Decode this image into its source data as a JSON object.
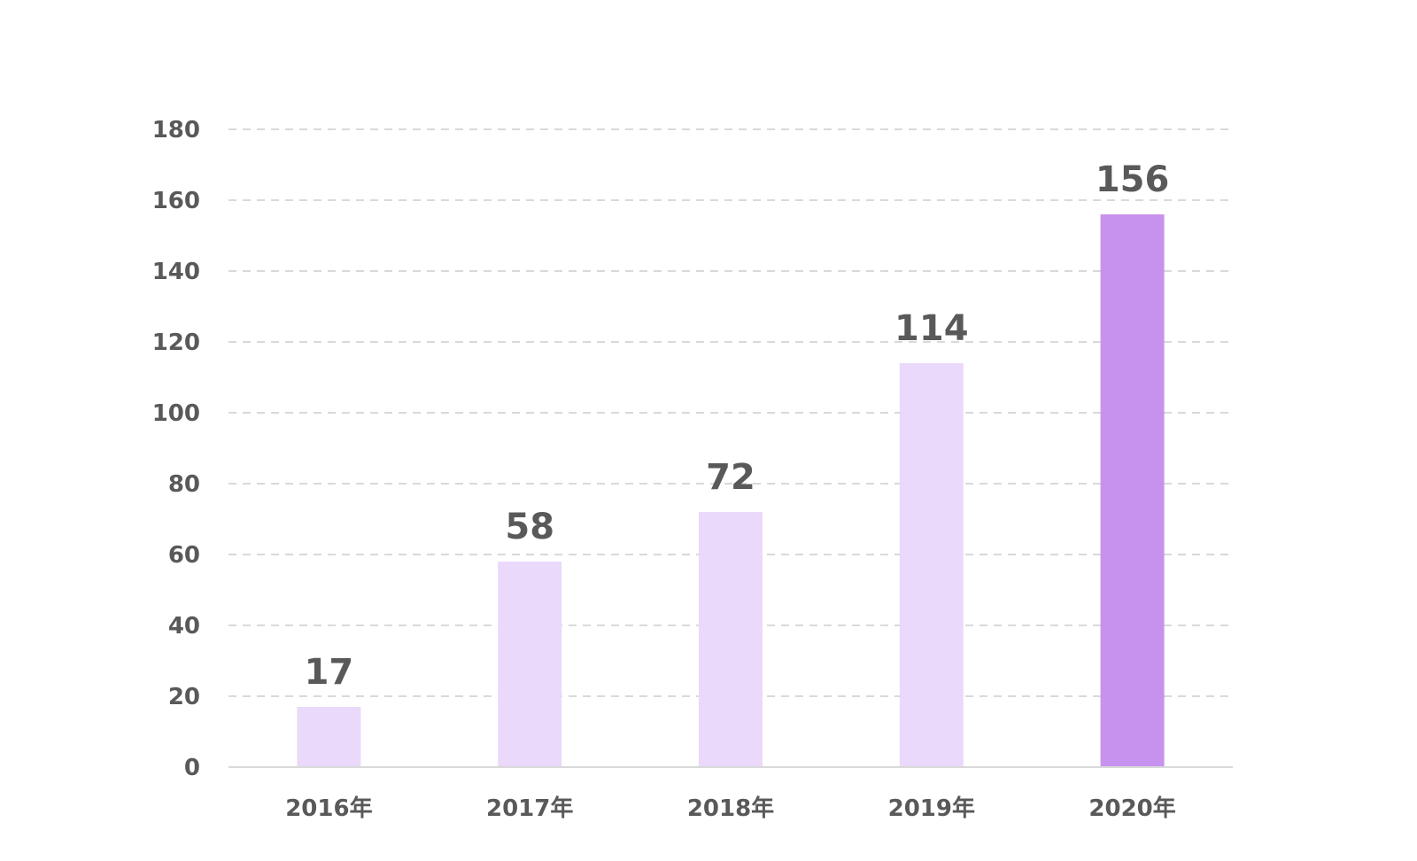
{
  "chart_data": {
    "type": "bar",
    "title": "",
    "xlabel": "",
    "ylabel": "",
    "categories": [
      "2016年",
      "2017年",
      "2018年",
      "2019年",
      "2020年"
    ],
    "values": [
      17,
      58,
      72,
      114,
      156
    ],
    "value_labels": [
      "17",
      "58",
      "72",
      "114",
      "156"
    ],
    "ylim": [
      0,
      180
    ],
    "yticks": [
      0,
      20,
      40,
      60,
      80,
      100,
      120,
      140,
      160,
      180
    ],
    "ytick_labels": [
      "0",
      "20",
      "40",
      "60",
      "80",
      "100",
      "120",
      "140",
      "160",
      "180"
    ],
    "grid": true,
    "legend": "none",
    "highlight_index": 4,
    "colors": {
      "bar": "#ead9fa",
      "highlight": "#c792ee",
      "text": "#595959",
      "grid": "#d9d9d9"
    }
  }
}
